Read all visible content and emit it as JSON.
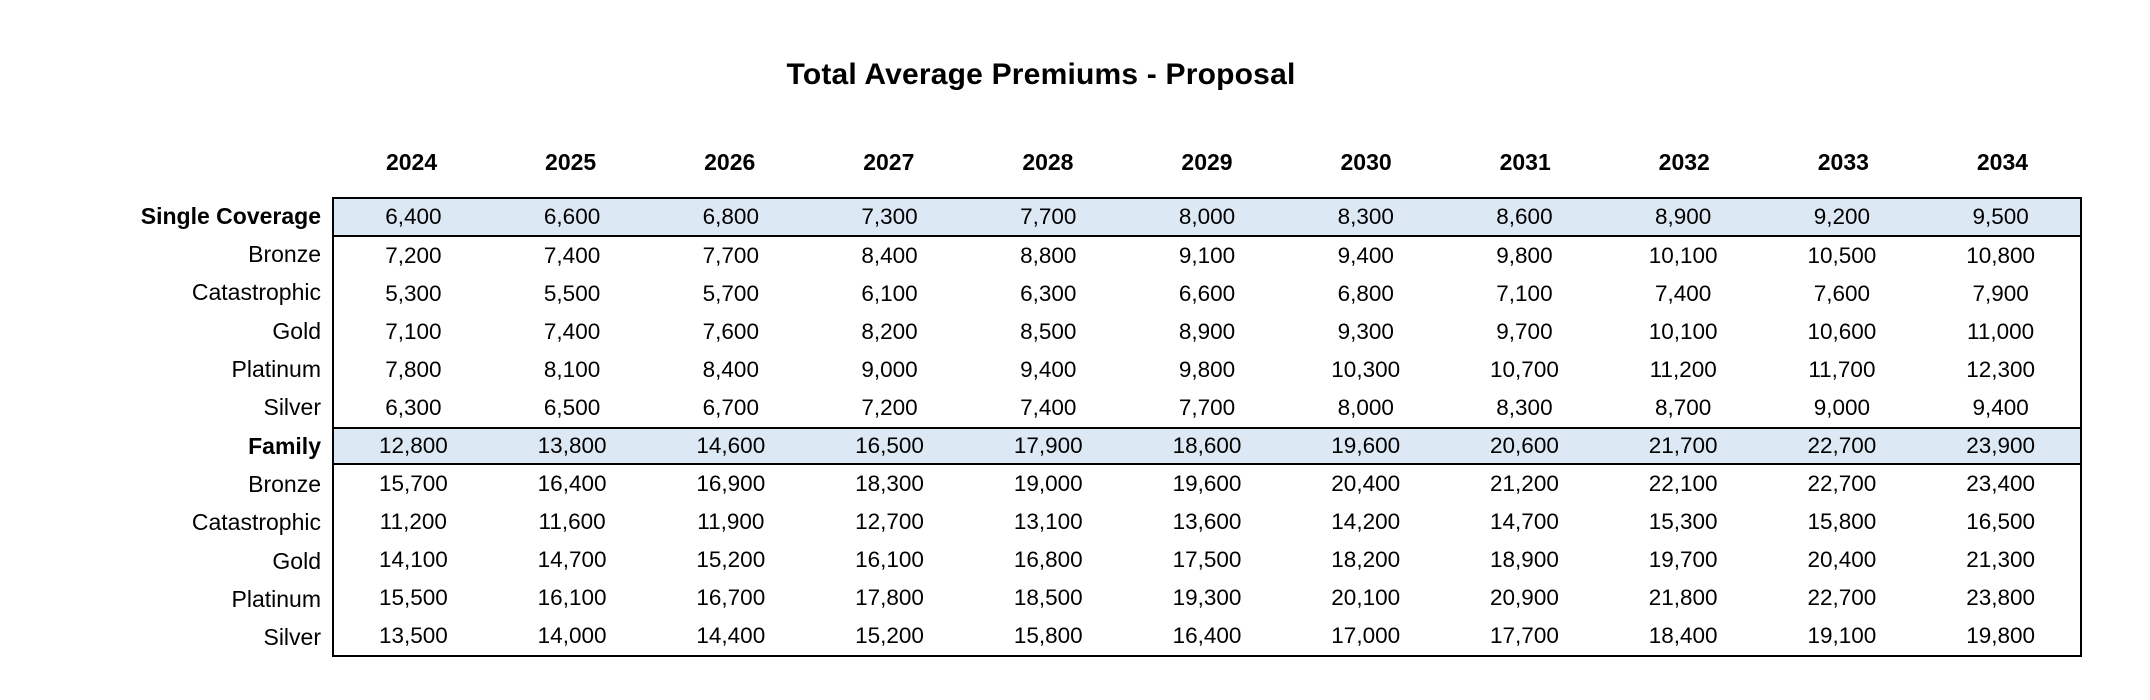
{
  "chart_data": {
    "type": "table",
    "title": "Total Average Premiums - Proposal",
    "categories": [
      "2024",
      "2025",
      "2026",
      "2027",
      "2028",
      "2029",
      "2030",
      "2031",
      "2032",
      "2033",
      "2034"
    ],
    "series": [
      {
        "name": "Single Coverage",
        "group_header": true,
        "values": [
          6400,
          6600,
          6800,
          7300,
          7700,
          8000,
          8300,
          8600,
          8900,
          9200,
          9500
        ]
      },
      {
        "name": "Bronze",
        "group_header": false,
        "values": [
          7200,
          7400,
          7700,
          8400,
          8800,
          9100,
          9400,
          9800,
          10100,
          10500,
          10800
        ]
      },
      {
        "name": "Catastrophic",
        "group_header": false,
        "values": [
          5300,
          5500,
          5700,
          6100,
          6300,
          6600,
          6800,
          7100,
          7400,
          7600,
          7900
        ]
      },
      {
        "name": "Gold",
        "group_header": false,
        "values": [
          7100,
          7400,
          7600,
          8200,
          8500,
          8900,
          9300,
          9700,
          10100,
          10600,
          11000
        ]
      },
      {
        "name": "Platinum",
        "group_header": false,
        "values": [
          7800,
          8100,
          8400,
          9000,
          9400,
          9800,
          10300,
          10700,
          11200,
          11700,
          12300
        ]
      },
      {
        "name": "Silver",
        "group_header": false,
        "values": [
          6300,
          6500,
          6700,
          7200,
          7400,
          7700,
          8000,
          8300,
          8700,
          9000,
          9400
        ]
      },
      {
        "name": "Family",
        "group_header": true,
        "values": [
          12800,
          13800,
          14600,
          16500,
          17900,
          18600,
          19600,
          20600,
          21700,
          22700,
          23900
        ]
      },
      {
        "name": "Bronze",
        "group_header": false,
        "values": [
          15700,
          16400,
          16900,
          18300,
          19000,
          19600,
          20400,
          21200,
          22100,
          22700,
          23400
        ]
      },
      {
        "name": "Catastrophic",
        "group_header": false,
        "values": [
          11200,
          11600,
          11900,
          12700,
          13100,
          13600,
          14200,
          14700,
          15300,
          15800,
          16500
        ]
      },
      {
        "name": "Gold",
        "group_header": false,
        "values": [
          14100,
          14700,
          15200,
          16100,
          16800,
          17500,
          18200,
          18900,
          19700,
          20400,
          21300
        ]
      },
      {
        "name": "Platinum",
        "group_header": false,
        "values": [
          15500,
          16100,
          16700,
          17800,
          18500,
          19300,
          20100,
          20900,
          21800,
          22700,
          23800
        ]
      },
      {
        "name": "Silver",
        "group_header": false,
        "values": [
          13500,
          14000,
          14400,
          15200,
          15800,
          16400,
          17000,
          17700,
          18400,
          19100,
          19800
        ]
      }
    ],
    "layout": {
      "grid": "off",
      "legend": "none",
      "number_format": "thousands-comma"
    }
  },
  "colors": {
    "highlight_fill": "#dce9f5",
    "border": "#000000",
    "text": "#000000",
    "background": "#ffffff"
  }
}
